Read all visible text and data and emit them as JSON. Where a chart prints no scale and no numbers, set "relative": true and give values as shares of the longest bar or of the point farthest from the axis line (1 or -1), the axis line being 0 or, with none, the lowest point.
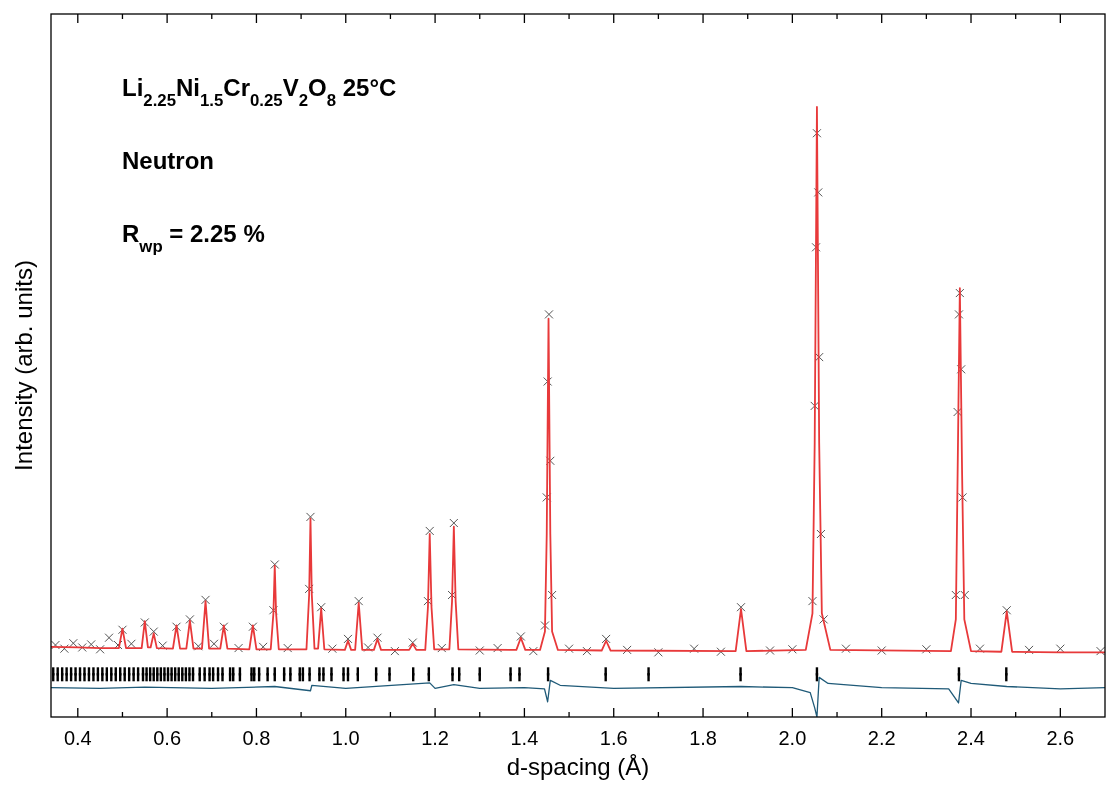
{
  "chart_data": {
    "type": "line",
    "relative": true,
    "xlabel": "d-spacing (Å)",
    "ylabel": "Intensity (arb. units)",
    "annotations": [
      "Li$_{2.25}$Ni$_{1.5}$Cr$_{0.25}$V$_{2}$O$_{8}$ 25°C",
      "Neutron",
      "R$_{wp}$ = 2.25 %"
    ],
    "xlim": [
      0.34,
      2.7
    ],
    "xticks": [
      0.4,
      {
        "value": 0.5,
        "label": null
      },
      0.6,
      {
        "value": 0.7,
        "label": null
      },
      0.8,
      {
        "value": 0.9,
        "label": null
      },
      {
        "value": 1.0,
        "label": "1.0"
      },
      {
        "value": 1.1,
        "label": null
      },
      1.2,
      {
        "value": 1.3,
        "label": null
      },
      1.4,
      {
        "value": 1.5,
        "label": null
      },
      1.6,
      {
        "value": 1.7,
        "label": null
      },
      1.8,
      {
        "value": 1.9,
        "label": null
      },
      {
        "value": 2.0,
        "label": "2.0"
      },
      {
        "value": 2.1,
        "label": null
      },
      2.2,
      {
        "value": 2.3,
        "label": null
      },
      2.4,
      {
        "value": 2.5,
        "label": null
      },
      2.6
    ],
    "series": [
      {
        "type": "scatter",
        "marker": "cross",
        "color": "#555555",
        "x": [
          0.35,
          0.37,
          0.39,
          0.41,
          0.43,
          0.45,
          0.47,
          0.49,
          0.5,
          0.52,
          0.55,
          0.57,
          0.59,
          0.621,
          0.651,
          0.67,
          0.686,
          0.705,
          0.727,
          0.76,
          0.792,
          0.815,
          0.838,
          0.841,
          0.87,
          0.918,
          0.921,
          0.945,
          0.97,
          1.005,
          1.029,
          1.05,
          1.071,
          1.11,
          1.15,
          1.184,
          1.188,
          1.215,
          1.238,
          1.242,
          1.3,
          1.34,
          1.392,
          1.42,
          1.446,
          1.45,
          1.452,
          1.455,
          1.458,
          1.462,
          1.5,
          1.54,
          1.583,
          1.63,
          1.7,
          1.78,
          1.84,
          1.885,
          1.95,
          2.0,
          2.045,
          2.05,
          2.053,
          2.055,
          2.058,
          2.06,
          2.064,
          2.07,
          2.12,
          2.2,
          2.3,
          2.366,
          2.37,
          2.373,
          2.375,
          2.378,
          2.381,
          2.386,
          2.42,
          2.48,
          2.53,
          2.6,
          2.69
        ],
        "values": [
          0.118,
          0.112,
          0.121,
          0.114,
          0.119,
          0.111,
          0.13,
          0.118,
          0.143,
          0.12,
          0.155,
          0.14,
          0.117,
          0.148,
          0.16,
          0.116,
          0.192,
          0.12,
          0.148,
          0.113,
          0.148,
          0.115,
          0.175,
          0.25,
          0.113,
          0.21,
          0.328,
          0.18,
          0.112,
          0.128,
          0.19,
          0.114,
          0.13,
          0.108,
          0.122,
          0.19,
          0.305,
          0.113,
          0.2,
          0.318,
          0.109,
          0.113,
          0.132,
          0.108,
          0.15,
          0.36,
          0.55,
          0.66,
          0.42,
          0.2,
          0.112,
          0.108,
          0.128,
          0.11,
          0.106,
          0.112,
          0.107,
          0.18,
          0.109,
          0.111,
          0.19,
          0.51,
          0.77,
          0.957,
          0.86,
          0.59,
          0.3,
          0.16,
          0.112,
          0.109,
          0.111,
          0.2,
          0.5,
          0.66,
          0.695,
          0.57,
          0.36,
          0.2,
          0.112,
          0.175,
          0.11,
          0.112,
          0.108
        ]
      },
      {
        "color": "#e8393a",
        "x": [
          0.34,
          0.4,
          0.45,
          0.492,
          0.5,
          0.508,
          0.543,
          0.55,
          0.557,
          0.563,
          0.57,
          0.577,
          0.613,
          0.621,
          0.629,
          0.643,
          0.651,
          0.659,
          0.678,
          0.686,
          0.694,
          0.719,
          0.727,
          0.735,
          0.784,
          0.792,
          0.8,
          0.832,
          0.838,
          0.841,
          0.844,
          0.85,
          0.912,
          0.918,
          0.921,
          0.924,
          0.93,
          0.938,
          0.945,
          0.952,
          0.998,
          1.005,
          1.012,
          1.021,
          1.029,
          1.037,
          1.063,
          1.071,
          1.079,
          1.142,
          1.15,
          1.158,
          1.178,
          1.184,
          1.188,
          1.192,
          1.198,
          1.232,
          1.238,
          1.242,
          1.246,
          1.252,
          1.382,
          1.392,
          1.402,
          1.435,
          1.446,
          1.45,
          1.454,
          1.458,
          1.462,
          1.475,
          1.573,
          1.583,
          1.593,
          1.873,
          1.885,
          1.897,
          2.03,
          2.045,
          2.05,
          2.055,
          2.06,
          2.066,
          2.085,
          2.355,
          2.366,
          2.37,
          2.375,
          2.38,
          2.385,
          2.4,
          2.468,
          2.48,
          2.492,
          2.6,
          2.7
        ],
        "values": [
          0.115,
          0.114,
          0.113,
          0.113,
          0.145,
          0.113,
          0.113,
          0.157,
          0.114,
          0.114,
          0.137,
          0.113,
          0.112,
          0.15,
          0.112,
          0.112,
          0.158,
          0.112,
          0.112,
          0.19,
          0.112,
          0.112,
          0.15,
          0.112,
          0.111,
          0.15,
          0.111,
          0.111,
          0.17,
          0.248,
          0.17,
          0.111,
          0.111,
          0.2,
          0.325,
          0.2,
          0.112,
          0.112,
          0.178,
          0.111,
          0.11,
          0.125,
          0.11,
          0.11,
          0.187,
          0.11,
          0.11,
          0.128,
          0.11,
          0.11,
          0.12,
          0.11,
          0.11,
          0.18,
          0.3,
          0.18,
          0.111,
          0.111,
          0.19,
          0.312,
          0.19,
          0.111,
          0.11,
          0.13,
          0.11,
          0.11,
          0.14,
          0.3,
          0.653,
          0.3,
          0.14,
          0.11,
          0.109,
          0.125,
          0.109,
          0.108,
          0.177,
          0.108,
          0.11,
          0.17,
          0.45,
          1.0,
          0.45,
          0.17,
          0.11,
          0.108,
          0.16,
          0.4,
          0.703,
          0.4,
          0.16,
          0.108,
          0.107,
          0.173,
          0.107,
          0.106,
          0.106
        ]
      },
      {
        "type": "scatter",
        "marker": "square",
        "color": "#000000",
        "x": [
          0.345,
          0.355,
          0.365,
          0.375,
          0.385,
          0.395,
          0.405,
          0.415,
          0.425,
          0.435,
          0.445,
          0.455,
          0.465,
          0.475,
          0.485,
          0.495,
          0.505,
          0.515,
          0.525,
          0.535,
          0.546,
          0.554,
          0.562,
          0.57,
          0.578,
          0.586,
          0.594,
          0.602,
          0.61,
          0.618,
          0.626,
          0.634,
          0.642,
          0.65,
          0.658,
          0.673,
          0.684,
          0.695,
          0.703,
          0.714,
          0.724,
          0.741,
          0.748,
          0.763,
          0.789,
          0.795,
          0.806,
          0.825,
          0.841,
          0.862,
          0.876,
          0.897,
          0.904,
          0.919,
          0.941,
          0.95,
          0.968,
          0.995,
          1.005,
          1.027,
          1.068,
          1.098,
          1.151,
          1.186,
          1.239,
          1.254,
          1.3,
          1.369,
          1.389,
          1.453,
          1.582,
          1.678,
          1.884,
          2.055,
          2.373,
          2.479
        ],
        "values": [
          0.07,
          0.07,
          0.07,
          0.07,
          0.07,
          0.07,
          0.07,
          0.07,
          0.07,
          0.07,
          0.07,
          0.07,
          0.07,
          0.07,
          0.07,
          0.07,
          0.07,
          0.07,
          0.07,
          0.07,
          0.07,
          0.07,
          0.07,
          0.07,
          0.07,
          0.07,
          0.07,
          0.07,
          0.07,
          0.07,
          0.07,
          0.07,
          0.07,
          0.07,
          0.07,
          0.07,
          0.07,
          0.07,
          0.07,
          0.07,
          0.07,
          0.07,
          0.07,
          0.07,
          0.07,
          0.07,
          0.07,
          0.07,
          0.07,
          0.07,
          0.07,
          0.07,
          0.07,
          0.07,
          0.07,
          0.07,
          0.07,
          0.07,
          0.07,
          0.07,
          0.07,
          0.07,
          0.07,
          0.07,
          0.07,
          0.07,
          0.07,
          0.07,
          0.07,
          0.07,
          0.07,
          0.07,
          0.07,
          0.07,
          0.07,
          0.07
        ]
      },
      {
        "color": "#1f5a78",
        "x": [
          0.34,
          0.45,
          0.55,
          0.7,
          0.841,
          0.921,
          0.924,
          1.0,
          1.188,
          1.2,
          1.242,
          1.3,
          1.4,
          1.445,
          1.452,
          1.458,
          1.48,
          1.6,
          1.885,
          2.0,
          2.04,
          2.05,
          2.055,
          2.06,
          2.08,
          2.2,
          2.35,
          2.372,
          2.378,
          2.4,
          2.48,
          2.6,
          2.7
        ],
        "values": [
          0.048,
          0.047,
          0.049,
          0.047,
          0.05,
          0.043,
          0.052,
          0.047,
          0.056,
          0.047,
          0.053,
          0.047,
          0.048,
          0.046,
          0.025,
          0.06,
          0.052,
          0.047,
          0.05,
          0.048,
          0.04,
          0.015,
          0.0,
          0.065,
          0.055,
          0.048,
          0.046,
          0.023,
          0.06,
          0.055,
          0.05,
          0.046,
          0.048
        ]
      }
    ]
  }
}
